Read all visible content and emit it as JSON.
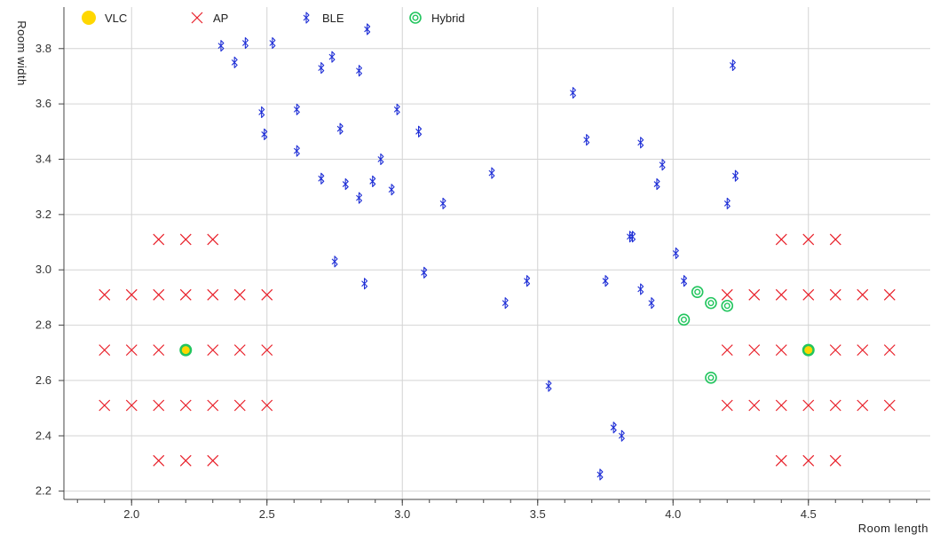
{
  "chart_data": {
    "type": "scatter",
    "xlabel": "Room length",
    "ylabel": "Room width",
    "xlim": [
      1.75,
      4.95
    ],
    "ylim": [
      2.17,
      3.95
    ],
    "xticks": [
      "2.0",
      "2.5",
      "3.0",
      "3.5",
      "4.0",
      "4.5"
    ],
    "yticks": [
      "2.2",
      "2.4",
      "2.6",
      "2.8",
      "3.0",
      "3.2",
      "3.4",
      "3.6",
      "3.8"
    ],
    "grid": "vertical",
    "legend_position": "top",
    "series": [
      {
        "name": "VLC",
        "marker": "filled-circle",
        "color": "#ffd700",
        "points": [
          [
            2.2,
            2.71
          ],
          [
            4.5,
            2.71
          ]
        ]
      },
      {
        "name": "AP",
        "marker": "x",
        "color": "#e8202a",
        "points": [
          [
            2.1,
            3.11
          ],
          [
            2.2,
            3.11
          ],
          [
            2.3,
            3.11
          ],
          [
            1.9,
            2.91
          ],
          [
            2.0,
            2.91
          ],
          [
            2.1,
            2.91
          ],
          [
            2.2,
            2.91
          ],
          [
            2.3,
            2.91
          ],
          [
            2.4,
            2.91
          ],
          [
            2.5,
            2.91
          ],
          [
            1.9,
            2.71
          ],
          [
            2.0,
            2.71
          ],
          [
            2.1,
            2.71
          ],
          [
            2.3,
            2.71
          ],
          [
            2.4,
            2.71
          ],
          [
            2.5,
            2.71
          ],
          [
            1.9,
            2.51
          ],
          [
            2.0,
            2.51
          ],
          [
            2.1,
            2.51
          ],
          [
            2.2,
            2.51
          ],
          [
            2.3,
            2.51
          ],
          [
            2.4,
            2.51
          ],
          [
            2.5,
            2.51
          ],
          [
            2.1,
            2.31
          ],
          [
            2.2,
            2.31
          ],
          [
            2.3,
            2.31
          ],
          [
            4.4,
            3.11
          ],
          [
            4.5,
            3.11
          ],
          [
            4.6,
            3.11
          ],
          [
            4.2,
            2.91
          ],
          [
            4.3,
            2.91
          ],
          [
            4.4,
            2.91
          ],
          [
            4.5,
            2.91
          ],
          [
            4.6,
            2.91
          ],
          [
            4.7,
            2.91
          ],
          [
            4.8,
            2.91
          ],
          [
            4.2,
            2.71
          ],
          [
            4.3,
            2.71
          ],
          [
            4.4,
            2.71
          ],
          [
            4.6,
            2.71
          ],
          [
            4.7,
            2.71
          ],
          [
            4.8,
            2.71
          ],
          [
            4.2,
            2.51
          ],
          [
            4.3,
            2.51
          ],
          [
            4.4,
            2.51
          ],
          [
            4.5,
            2.51
          ],
          [
            4.6,
            2.51
          ],
          [
            4.7,
            2.51
          ],
          [
            4.8,
            2.51
          ],
          [
            4.4,
            2.31
          ],
          [
            4.5,
            2.31
          ],
          [
            4.6,
            2.31
          ]
        ]
      },
      {
        "name": "BLE",
        "marker": "bluetooth",
        "color": "#1f2fd6",
        "points": [
          [
            2.33,
            3.81
          ],
          [
            2.42,
            3.82
          ],
          [
            2.52,
            3.82
          ],
          [
            2.38,
            3.75
          ],
          [
            2.87,
            3.87
          ],
          [
            2.74,
            3.77
          ],
          [
            2.7,
            3.73
          ],
          [
            2.84,
            3.72
          ],
          [
            2.48,
            3.57
          ],
          [
            2.61,
            3.58
          ],
          [
            2.98,
            3.58
          ],
          [
            2.49,
            3.49
          ],
          [
            2.77,
            3.51
          ],
          [
            3.06,
            3.5
          ],
          [
            2.61,
            3.43
          ],
          [
            2.92,
            3.4
          ],
          [
            2.7,
            3.33
          ],
          [
            2.79,
            3.31
          ],
          [
            2.89,
            3.32
          ],
          [
            2.96,
            3.29
          ],
          [
            2.84,
            3.26
          ],
          [
            3.15,
            3.24
          ],
          [
            3.33,
            3.35
          ],
          [
            2.75,
            3.03
          ],
          [
            2.86,
            2.95
          ],
          [
            3.08,
            2.99
          ],
          [
            3.38,
            2.88
          ],
          [
            3.46,
            2.96
          ],
          [
            3.54,
            2.58
          ],
          [
            3.63,
            3.64
          ],
          [
            3.68,
            3.47
          ],
          [
            3.73,
            2.26
          ],
          [
            3.75,
            2.96
          ],
          [
            3.78,
            2.43
          ],
          [
            3.81,
            2.4
          ],
          [
            3.84,
            3.12
          ],
          [
            3.85,
            3.12
          ],
          [
            3.88,
            3.46
          ],
          [
            3.88,
            2.93
          ],
          [
            3.92,
            2.88
          ],
          [
            3.94,
            3.31
          ],
          [
            3.96,
            3.38
          ],
          [
            4.01,
            3.06
          ],
          [
            4.04,
            2.96
          ],
          [
            4.2,
            3.24
          ],
          [
            4.22,
            3.74
          ],
          [
            4.23,
            3.34
          ]
        ]
      },
      {
        "name": "Hybrid",
        "marker": "double-circle",
        "color": "#22c55e",
        "points": [
          [
            4.09,
            2.92
          ],
          [
            4.14,
            2.88
          ],
          [
            4.2,
            2.87
          ],
          [
            4.04,
            2.82
          ],
          [
            4.14,
            2.61
          ]
        ]
      }
    ]
  }
}
